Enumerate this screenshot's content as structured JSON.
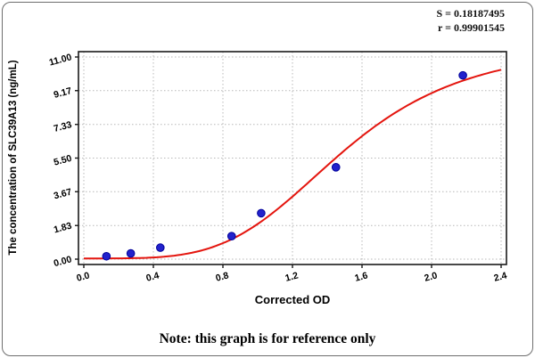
{
  "note": "Note: this graph is for reference only",
  "chart_data": {
    "type": "scatter",
    "title": "",
    "xlabel": "Corrected OD",
    "ylabel": "The concentration of SLC39A13 (ng/mL)",
    "x": [
      0.13,
      0.27,
      0.44,
      0.85,
      1.02,
      1.45,
      2.18
    ],
    "y": [
      0.156,
      0.312,
      0.625,
      1.25,
      2.5,
      5.0,
      10.0
    ],
    "xlim": [
      0,
      2.4
    ],
    "ylim": [
      0,
      11
    ],
    "xticks": [
      0.0,
      0.4,
      0.8,
      1.2,
      1.6,
      2.0,
      2.4
    ],
    "xtick_labels": [
      "0.0",
      "0.4",
      "0.8",
      "1.2",
      "1.6",
      "2.0",
      "2.4"
    ],
    "yticks": [
      0.0,
      1.83,
      3.67,
      5.5,
      7.33,
      9.17,
      11.0
    ],
    "ytick_labels": [
      "0.00",
      "1.83",
      "3.67",
      "5.50",
      "7.33",
      "9.17",
      "11.00"
    ],
    "grid": true,
    "legend": null,
    "annotations": [
      "S = 0.18187495",
      "r = 0.99901545"
    ],
    "colors": {
      "point": "#2222cc",
      "point_edge": "#00009a",
      "curve": "#e4150e",
      "grid": "#b8b8b8",
      "frame": "#1a1a1a"
    },
    "fit": {
      "model": "4PL",
      "a": 0.04,
      "b": 4.1,
      "c": 1.5,
      "d": 11.8
    }
  }
}
